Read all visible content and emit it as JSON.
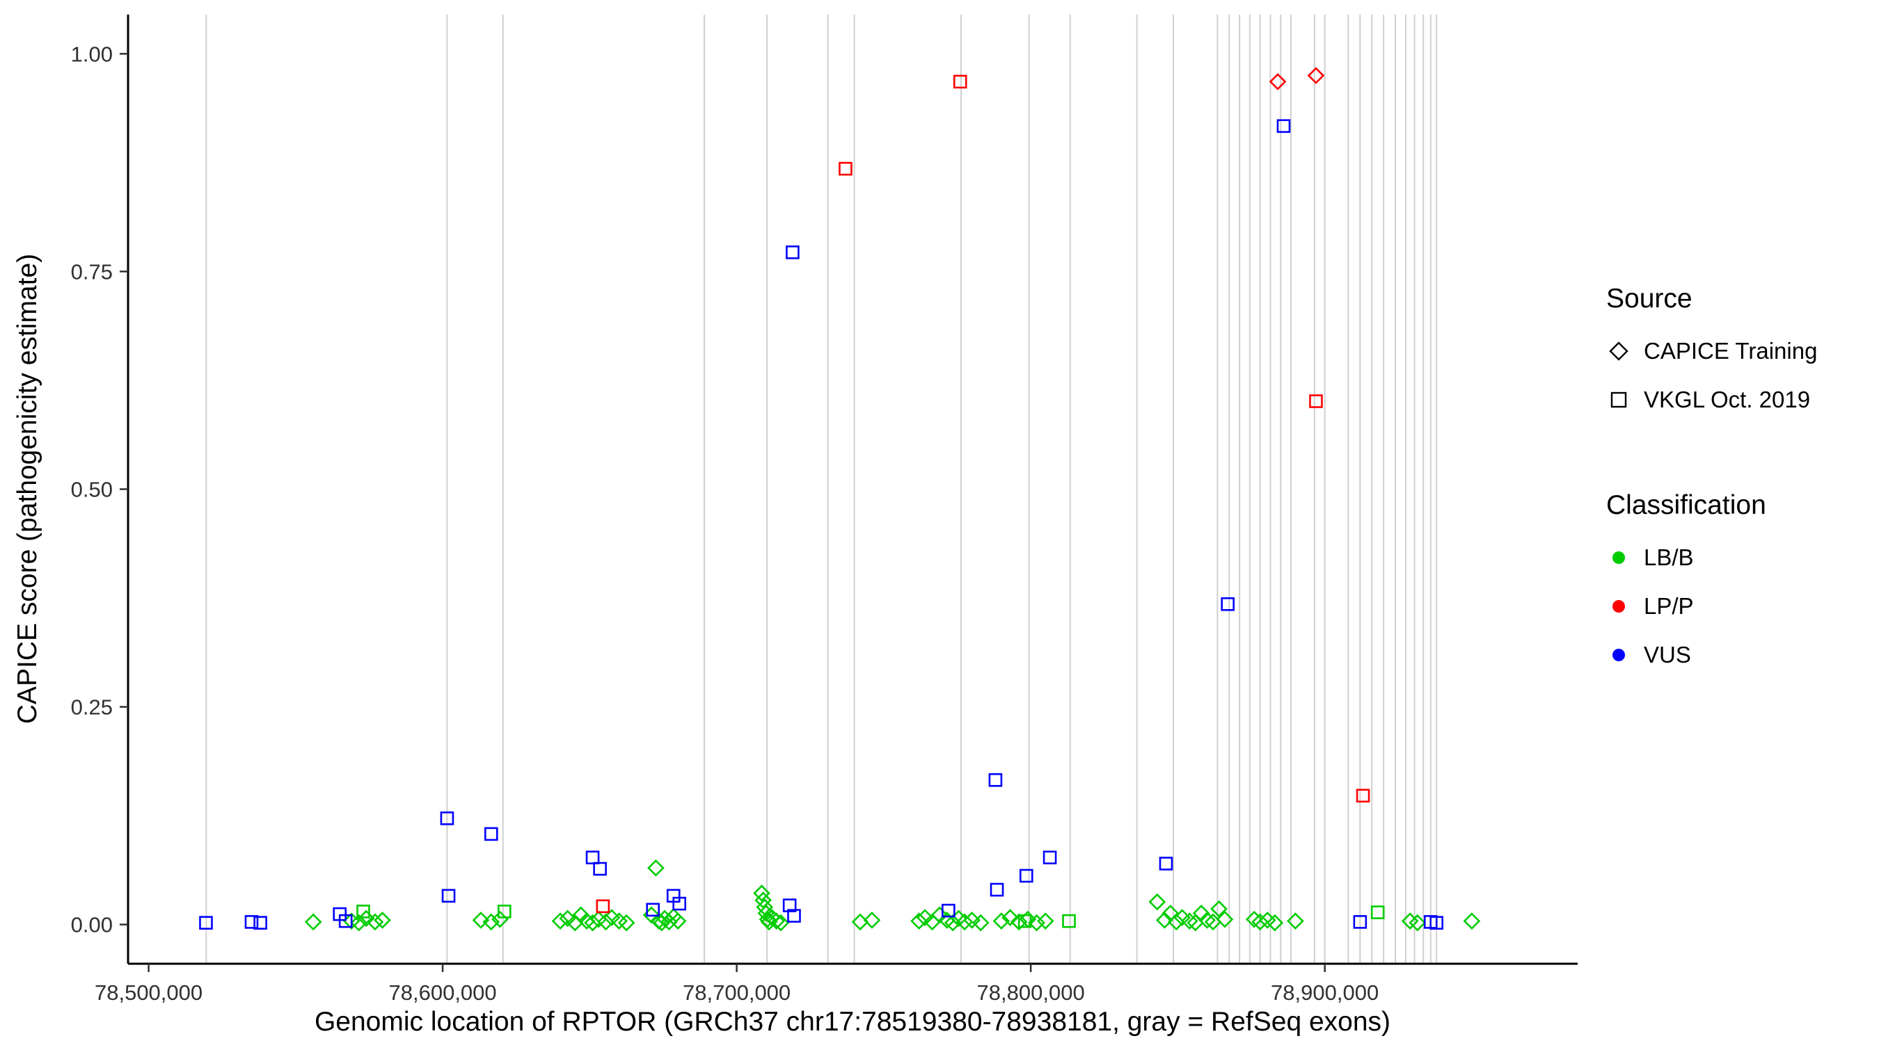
{
  "legend": {
    "source_title": "Source",
    "source_items": [
      {
        "label": "CAPICE Training",
        "shape": "open-diamond"
      },
      {
        "label": "VKGL Oct. 2019",
        "shape": "open-square"
      }
    ],
    "classification_title": "Classification",
    "classification_items": [
      {
        "label": "LB/B",
        "color": "#00CC00"
      },
      {
        "label": "LP/P",
        "color": "#FF0000"
      },
      {
        "label": "VUS",
        "color": "#0000FF"
      }
    ]
  },
  "chart_data": {
    "type": "scatter",
    "title": "",
    "xlabel": "Genomic location of RPTOR (GRCh37 chr17:78519380-78938181, gray = RefSeq exons)",
    "ylabel": "CAPICE score (pathogenicity estimate)",
    "xlim": [
      78493000,
      78986000
    ],
    "ylim": [
      -0.045,
      1.045
    ],
    "grid": "off",
    "legend_position": "right",
    "x_ticks": [
      {
        "value": 78500000,
        "label": "78,500,000"
      },
      {
        "value": 78600000,
        "label": "78,600,000"
      },
      {
        "value": 78700000,
        "label": "78,700,000"
      },
      {
        "value": 78800000,
        "label": "78,800,000"
      },
      {
        "value": 78900000,
        "label": "78,900,000"
      }
    ],
    "y_ticks": [
      {
        "value": 0.0,
        "label": "0.00"
      },
      {
        "value": 0.25,
        "label": "0.25"
      },
      {
        "value": 0.5,
        "label": "0.50"
      },
      {
        "value": 0.75,
        "label": "0.75"
      },
      {
        "value": 1.0,
        "label": "1.00"
      }
    ],
    "exon_color": "#CFCFCF",
    "axis_color": "#000000",
    "tick_text_color": "#303030",
    "exons": [
      78519600,
      78601500,
      78620500,
      78689000,
      78710300,
      78731000,
      78740000,
      78776300,
      78799400,
      78813400,
      78836100,
      78848500,
      78863500,
      78867500,
      78871000,
      78874500,
      78878000,
      78881500,
      78885000,
      78888500,
      78896500,
      78900000,
      78908000,
      78912000,
      78916000,
      78920000,
      78924000,
      78927500,
      78930500,
      78933500,
      78936000,
      78938000
    ],
    "series": [
      {
        "name": "CAPICE Training - LB/B",
        "source": "CAPICE Training",
        "classification": "LB/B",
        "shape": "diamond",
        "color": "#00CC00",
        "points": [
          [
            78556000,
            0.003
          ],
          [
            78569000,
            0.004
          ],
          [
            78571500,
            0.002
          ],
          [
            78574000,
            0.007
          ],
          [
            78577000,
            0.003
          ],
          [
            78579500,
            0.005
          ],
          [
            78613000,
            0.005
          ],
          [
            78616500,
            0.003
          ],
          [
            78619500,
            0.006
          ],
          [
            78640000,
            0.004
          ],
          [
            78642500,
            0.007
          ],
          [
            78645000,
            0.002
          ],
          [
            78647000,
            0.011
          ],
          [
            78649000,
            0.004
          ],
          [
            78651000,
            0.002
          ],
          [
            78653000,
            0.006
          ],
          [
            78655500,
            0.003
          ],
          [
            78657500,
            0.008
          ],
          [
            78660000,
            0.004
          ],
          [
            78662500,
            0.002
          ],
          [
            78671000,
            0.011
          ],
          [
            78672500,
            0.065
          ],
          [
            78673500,
            0.004
          ],
          [
            78674500,
            0.002
          ],
          [
            78675500,
            0.007
          ],
          [
            78677000,
            0.003
          ],
          [
            78678500,
            0.009
          ],
          [
            78680000,
            0.004
          ],
          [
            78708500,
            0.036
          ],
          [
            78709000,
            0.028
          ],
          [
            78709500,
            0.02
          ],
          [
            78710000,
            0.013
          ],
          [
            78710500,
            0.006
          ],
          [
            78711000,
            0.003
          ],
          [
            78712000,
            0.008
          ],
          [
            78713500,
            0.004
          ],
          [
            78715000,
            0.002
          ],
          [
            78742000,
            0.003
          ],
          [
            78746000,
            0.005
          ],
          [
            78762000,
            0.004
          ],
          [
            78764000,
            0.008
          ],
          [
            78766500,
            0.003
          ],
          [
            78769000,
            0.011
          ],
          [
            78771500,
            0.005
          ],
          [
            78773500,
            0.002
          ],
          [
            78775500,
            0.007
          ],
          [
            78777500,
            0.003
          ],
          [
            78780000,
            0.005
          ],
          [
            78783000,
            0.002
          ],
          [
            78790000,
            0.004
          ],
          [
            78793000,
            0.008
          ],
          [
            78796000,
            0.003
          ],
          [
            78799000,
            0.006
          ],
          [
            78802000,
            0.002
          ],
          [
            78805000,
            0.004
          ],
          [
            78843000,
            0.026
          ],
          [
            78845500,
            0.005
          ],
          [
            78847500,
            0.013
          ],
          [
            78849500,
            0.003
          ],
          [
            78851500,
            0.008
          ],
          [
            78854000,
            0.004
          ],
          [
            78856000,
            0.002
          ],
          [
            78858000,
            0.013
          ],
          [
            78860000,
            0.005
          ],
          [
            78862000,
            0.003
          ],
          [
            78864000,
            0.018
          ],
          [
            78866000,
            0.006
          ],
          [
            78876000,
            0.006
          ],
          [
            78878000,
            0.003
          ],
          [
            78880500,
            0.005
          ],
          [
            78883000,
            0.002
          ],
          [
            78890000,
            0.004
          ],
          [
            78929000,
            0.004
          ],
          [
            78931500,
            0.002
          ],
          [
            78950000,
            0.004
          ]
        ]
      },
      {
        "name": "VKGL Oct. 2019 - LB/B",
        "source": "VKGL Oct. 2019",
        "classification": "LB/B",
        "shape": "square",
        "color": "#00CC00",
        "points": [
          [
            78573000,
            0.015
          ],
          [
            78621000,
            0.015
          ],
          [
            78798000,
            0.004
          ],
          [
            78813000,
            0.004
          ],
          [
            78918000,
            0.014
          ]
        ]
      },
      {
        "name": "VKGL Oct. 2019 - VUS",
        "source": "VKGL Oct. 2019",
        "classification": "VUS",
        "shape": "square",
        "color": "#0000FF",
        "points": [
          [
            78719000,
            0.772
          ],
          [
            78886000,
            0.917
          ],
          [
            78867000,
            0.368
          ],
          [
            78788000,
            0.166
          ],
          [
            78601500,
            0.122
          ],
          [
            78616500,
            0.104
          ],
          [
            78806500,
            0.077
          ],
          [
            78651000,
            0.077
          ],
          [
            78846000,
            0.07
          ],
          [
            78653500,
            0.064
          ],
          [
            78798500,
            0.056
          ],
          [
            78788500,
            0.04
          ],
          [
            78602000,
            0.033
          ],
          [
            78678500,
            0.033
          ],
          [
            78680500,
            0.024
          ],
          [
            78718000,
            0.022
          ],
          [
            78671500,
            0.017
          ],
          [
            78772000,
            0.016
          ],
          [
            78565000,
            0.012
          ],
          [
            78719500,
            0.01
          ],
          [
            78567000,
            0.004
          ],
          [
            78519500,
            0.002
          ],
          [
            78535000,
            0.003
          ],
          [
            78538000,
            0.002
          ],
          [
            78912000,
            0.003
          ],
          [
            78936000,
            0.003
          ],
          [
            78938000,
            0.002
          ]
        ]
      },
      {
        "name": "VKGL Oct. 2019 - LP/P",
        "source": "VKGL Oct. 2019",
        "classification": "LP/P",
        "shape": "square",
        "color": "#FF0000",
        "points": [
          [
            78776000,
            0.968
          ],
          [
            78737000,
            0.868
          ],
          [
            78897000,
            0.601
          ],
          [
            78913000,
            0.148
          ],
          [
            78654500,
            0.021
          ]
        ]
      },
      {
        "name": "CAPICE Training - LP/P",
        "source": "CAPICE Training",
        "classification": "LP/P",
        "shape": "diamond",
        "color": "#FF0000",
        "points": [
          [
            78884000,
            0.968
          ],
          [
            78897000,
            0.975
          ]
        ]
      }
    ]
  }
}
